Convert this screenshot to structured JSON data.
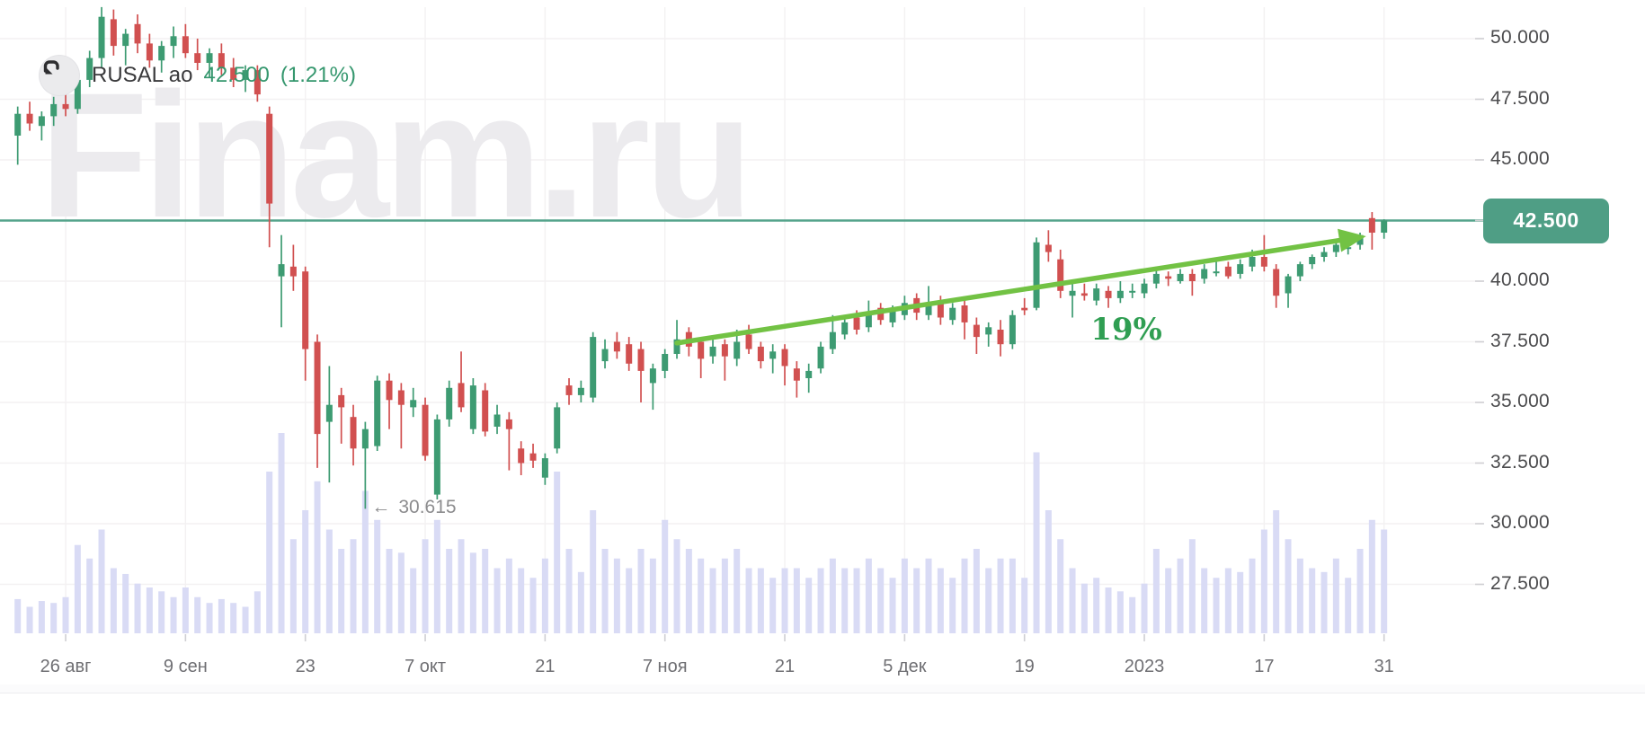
{
  "header": {
    "symbol": "RUSAL ао",
    "price": "42.500",
    "change": "(1.21%)"
  },
  "watermark": "Finam.ru",
  "annotations": {
    "low": {
      "arrow": "←",
      "label": "30.615"
    },
    "trend": {
      "label": "19%"
    }
  },
  "price_badge": "42.500",
  "y_axis": {
    "ticks": [
      {
        "label": "50.000",
        "value": 50.0
      },
      {
        "label": "47.500",
        "value": 47.5
      },
      {
        "label": "45.000",
        "value": 45.0
      },
      {
        "label": "42.500",
        "value": 42.5
      },
      {
        "label": "40.000",
        "value": 40.0
      },
      {
        "label": "37.500",
        "value": 37.5
      },
      {
        "label": "35.000",
        "value": 35.0
      },
      {
        "label": "32.500",
        "value": 32.5
      },
      {
        "label": "30.000",
        "value": 30.0
      },
      {
        "label": "27.500",
        "value": 27.5
      }
    ]
  },
  "x_axis": {
    "ticks": [
      {
        "label": "26 авг",
        "index": 4
      },
      {
        "label": "9 сен",
        "index": 14
      },
      {
        "label": "23",
        "index": 24
      },
      {
        "label": "7 окт",
        "index": 34
      },
      {
        "label": "21",
        "index": 44
      },
      {
        "label": "7 ноя",
        "index": 54
      },
      {
        "label": "21",
        "index": 64
      },
      {
        "label": "5 дек",
        "index": 74
      },
      {
        "label": "19",
        "index": 84
      },
      {
        "label": "2023",
        "index": 94
      },
      {
        "label": "17",
        "index": 104
      },
      {
        "label": "31",
        "index": 114
      }
    ]
  },
  "colors": {
    "up": "#3d9b72",
    "down": "#d15050",
    "price_line": "#55a38b",
    "badge": "#4f9e85",
    "arrow": "#72c244",
    "trend_label": "#2f9e52",
    "volume": "#d9dbf5",
    "watermark": "#ecebee",
    "grid": "#f3f1f2",
    "axis_tick": "#cfcfd3"
  },
  "chart_data": {
    "type": "candlestick",
    "symbol": "RUSAL ао",
    "last_price": 42.5,
    "change_pct": 1.21,
    "price_line": 42.5,
    "y_range": [
      25.5,
      51.3
    ],
    "low_annotation": {
      "index": 29,
      "price": 30.615
    },
    "trend_arrow": {
      "from": {
        "index": 55,
        "price": 37.45
      },
      "to": {
        "index": 112.5,
        "price": 41.85
      },
      "label_pos": {
        "index": 92.5,
        "price": 37.85
      },
      "gain_pct": "19%"
    },
    "candles": [
      [
        46.0,
        47.2,
        44.8,
        46.9,
        0.14
      ],
      [
        46.9,
        47.4,
        46.2,
        46.5,
        0.1
      ],
      [
        46.4,
        47.0,
        45.8,
        46.8,
        0.13
      ],
      [
        46.8,
        47.6,
        46.4,
        47.3,
        0.12
      ],
      [
        47.3,
        47.9,
        46.8,
        47.1,
        0.15
      ],
      [
        47.1,
        48.6,
        46.9,
        48.3,
        0.42
      ],
      [
        48.3,
        49.5,
        48.0,
        49.2,
        0.35
      ],
      [
        49.2,
        51.3,
        48.8,
        50.9,
        0.5
      ],
      [
        50.8,
        51.2,
        49.3,
        49.7,
        0.3
      ],
      [
        49.7,
        50.4,
        48.9,
        50.2,
        0.27
      ],
      [
        50.6,
        51.0,
        49.4,
        49.8,
        0.22
      ],
      [
        49.8,
        50.2,
        48.8,
        49.1,
        0.2
      ],
      [
        49.1,
        49.9,
        48.6,
        49.7,
        0.18
      ],
      [
        49.7,
        50.5,
        49.2,
        50.1,
        0.15
      ],
      [
        50.1,
        50.6,
        49.2,
        49.4,
        0.2
      ],
      [
        49.4,
        50.0,
        48.7,
        49.0,
        0.15
      ],
      [
        49.0,
        49.6,
        48.4,
        49.4,
        0.12
      ],
      [
        49.4,
        49.8,
        48.5,
        48.8,
        0.14
      ],
      [
        48.8,
        49.2,
        48.0,
        48.3,
        0.12
      ],
      [
        48.3,
        48.9,
        47.8,
        48.7,
        0.1
      ],
      [
        48.7,
        48.9,
        47.4,
        47.7,
        0.18
      ],
      [
        46.9,
        47.2,
        41.4,
        43.2,
        0.8
      ],
      [
        40.2,
        41.9,
        38.1,
        40.7,
        1.0
      ],
      [
        40.6,
        41.5,
        39.6,
        40.2,
        0.45
      ],
      [
        40.4,
        40.6,
        35.9,
        37.2,
        0.6
      ],
      [
        37.5,
        37.8,
        32.3,
        33.7,
        0.75
      ],
      [
        34.2,
        36.5,
        31.7,
        34.9,
        0.5
      ],
      [
        35.3,
        35.6,
        33.3,
        34.8,
        0.4
      ],
      [
        34.4,
        34.9,
        32.4,
        33.1,
        0.45
      ],
      [
        33.1,
        34.2,
        30.615,
        33.9,
        0.7
      ],
      [
        33.2,
        36.1,
        33.0,
        35.9,
        0.55
      ],
      [
        35.9,
        36.2,
        33.9,
        35.1,
        0.4
      ],
      [
        35.5,
        35.8,
        33.1,
        34.9,
        0.38
      ],
      [
        34.8,
        35.6,
        34.4,
        35.1,
        0.3
      ],
      [
        34.9,
        35.2,
        32.6,
        32.8,
        0.45
      ],
      [
        31.2,
        34.5,
        31.0,
        34.3,
        0.55
      ],
      [
        34.3,
        35.9,
        34.0,
        35.6,
        0.4
      ],
      [
        35.8,
        37.1,
        34.6,
        34.8,
        0.45
      ],
      [
        33.9,
        36.0,
        33.7,
        35.7,
        0.38
      ],
      [
        35.5,
        35.8,
        33.6,
        33.8,
        0.4
      ],
      [
        34.0,
        34.9,
        33.7,
        34.5,
        0.3
      ],
      [
        34.3,
        34.6,
        32.2,
        33.9,
        0.35
      ],
      [
        33.1,
        33.4,
        32.0,
        32.5,
        0.3
      ],
      [
        32.9,
        33.3,
        32.3,
        32.6,
        0.25
      ],
      [
        31.9,
        32.9,
        31.6,
        32.7,
        0.35
      ],
      [
        33.1,
        35.0,
        32.9,
        34.8,
        0.8
      ],
      [
        35.7,
        36.0,
        34.9,
        35.3,
        0.4
      ],
      [
        35.3,
        35.9,
        35.0,
        35.6,
        0.28
      ],
      [
        35.2,
        37.9,
        35.0,
        37.7,
        0.6
      ],
      [
        36.7,
        37.6,
        36.4,
        37.2,
        0.4
      ],
      [
        37.5,
        37.9,
        36.8,
        37.1,
        0.35
      ],
      [
        37.4,
        37.7,
        36.3,
        36.6,
        0.3
      ],
      [
        37.2,
        37.5,
        35.0,
        36.3,
        0.4
      ],
      [
        35.8,
        36.6,
        34.7,
        36.4,
        0.35
      ],
      [
        36.3,
        37.2,
        36.0,
        37.0,
        0.55
      ],
      [
        37.0,
        38.4,
        36.8,
        37.6,
        0.45
      ],
      [
        37.9,
        38.1,
        36.9,
        37.3,
        0.4
      ],
      [
        37.5,
        37.7,
        36.0,
        36.8,
        0.35
      ],
      [
        36.9,
        37.6,
        36.6,
        37.3,
        0.3
      ],
      [
        37.4,
        37.6,
        35.9,
        36.9,
        0.35
      ],
      [
        36.8,
        38.0,
        36.5,
        37.5,
        0.4
      ],
      [
        37.8,
        38.2,
        37.0,
        37.2,
        0.3
      ],
      [
        37.3,
        37.5,
        36.4,
        36.7,
        0.3
      ],
      [
        36.8,
        37.4,
        36.2,
        37.1,
        0.25
      ],
      [
        37.2,
        37.4,
        35.7,
        36.5,
        0.3
      ],
      [
        36.4,
        36.7,
        35.2,
        35.9,
        0.3
      ],
      [
        36.0,
        36.6,
        35.4,
        36.3,
        0.25
      ],
      [
        36.4,
        37.5,
        36.2,
        37.3,
        0.3
      ],
      [
        37.2,
        38.6,
        37.0,
        37.9,
        0.35
      ],
      [
        37.8,
        38.5,
        37.6,
        38.3,
        0.3
      ],
      [
        38.5,
        38.8,
        37.8,
        38.0,
        0.3
      ],
      [
        38.1,
        39.2,
        37.9,
        38.6,
        0.35
      ],
      [
        38.9,
        39.1,
        38.2,
        38.4,
        0.3
      ],
      [
        38.3,
        39.0,
        38.1,
        38.8,
        0.25
      ],
      [
        38.6,
        39.4,
        38.4,
        39.1,
        0.35
      ],
      [
        39.3,
        39.5,
        38.4,
        38.7,
        0.3
      ],
      [
        38.6,
        39.8,
        38.4,
        39.0,
        0.35
      ],
      [
        39.2,
        39.4,
        38.2,
        38.5,
        0.3
      ],
      [
        38.4,
        39.1,
        38.2,
        38.9,
        0.25
      ],
      [
        39.0,
        39.2,
        37.6,
        38.3,
        0.35
      ],
      [
        38.2,
        38.5,
        37.0,
        37.7,
        0.4
      ],
      [
        37.8,
        38.3,
        37.3,
        38.1,
        0.3
      ],
      [
        38.0,
        38.4,
        36.9,
        37.4,
        0.35
      ],
      [
        37.4,
        38.8,
        37.2,
        38.6,
        0.35
      ],
      [
        38.9,
        39.3,
        38.6,
        38.8,
        0.25
      ],
      [
        38.9,
        41.8,
        38.8,
        41.6,
        0.9
      ],
      [
        41.5,
        42.1,
        40.8,
        41.2,
        0.6
      ],
      [
        40.9,
        41.3,
        39.3,
        39.6,
        0.45
      ],
      [
        39.4,
        39.9,
        38.5,
        39.6,
        0.3
      ],
      [
        39.5,
        39.9,
        39.2,
        39.4,
        0.22
      ],
      [
        39.2,
        39.9,
        39.0,
        39.7,
        0.25
      ],
      [
        39.6,
        39.8,
        38.9,
        39.3,
        0.2
      ],
      [
        39.3,
        40.0,
        39.1,
        39.6,
        0.18
      ],
      [
        39.6,
        39.9,
        39.3,
        39.6,
        0.15
      ],
      [
        39.5,
        40.1,
        39.3,
        39.9,
        0.22
      ],
      [
        39.9,
        40.5,
        39.7,
        40.3,
        0.4
      ],
      [
        40.2,
        40.4,
        39.8,
        40.1,
        0.3
      ],
      [
        40.0,
        40.5,
        39.9,
        40.3,
        0.35
      ],
      [
        40.3,
        40.5,
        39.4,
        40.0,
        0.45
      ],
      [
        40.1,
        40.7,
        39.9,
        40.5,
        0.3
      ],
      [
        40.4,
        40.9,
        40.2,
        40.4,
        0.25
      ],
      [
        40.6,
        40.8,
        40.1,
        40.2,
        0.3
      ],
      [
        40.3,
        40.9,
        40.1,
        40.7,
        0.28
      ],
      [
        40.6,
        41.3,
        40.4,
        41.0,
        0.35
      ],
      [
        41.0,
        41.9,
        40.4,
        40.6,
        0.5
      ],
      [
        40.5,
        40.7,
        38.9,
        39.4,
        0.6
      ],
      [
        39.5,
        40.3,
        38.9,
        40.2,
        0.45
      ],
      [
        40.2,
        40.8,
        40.0,
        40.7,
        0.35
      ],
      [
        40.7,
        41.1,
        40.5,
        41.0,
        0.3
      ],
      [
        41.0,
        41.4,
        40.8,
        41.2,
        0.28
      ],
      [
        41.2,
        41.6,
        41.0,
        41.5,
        0.35
      ],
      [
        41.4,
        41.7,
        41.1,
        41.4,
        0.25
      ],
      [
        41.5,
        42.0,
        41.3,
        41.9,
        0.4
      ],
      [
        42.6,
        42.85,
        41.3,
        42.0,
        0.55
      ],
      [
        42.0,
        42.55,
        41.75,
        42.5,
        0.5
      ]
    ]
  }
}
